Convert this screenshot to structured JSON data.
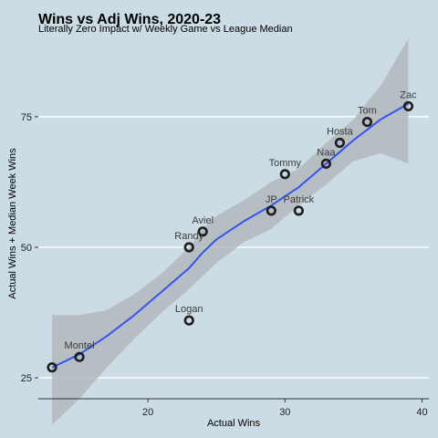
{
  "chart_data": {
    "type": "scatter",
    "title": "Wins vs Adj Wins, 2020-23",
    "subtitle": "Literally Zero Impact w/ Weekly Game vs League Median",
    "xlabel": "Actual Wins",
    "ylabel": "Actual Wins + Median Week Wins",
    "xlim": [
      12,
      40.5
    ],
    "ylim": [
      21,
      90
    ],
    "xticks": [
      20,
      30,
      40
    ],
    "yticks": [
      25,
      50,
      75
    ],
    "grid": "horizontal",
    "points": [
      {
        "name": "Montel",
        "x": 15,
        "y": 29
      },
      {
        "name": "Logan",
        "x": 23,
        "y": 36
      },
      {
        "name": "Randy",
        "x": 23,
        "y": 50
      },
      {
        "name": "Aviel",
        "x": 24,
        "y": 53
      },
      {
        "name": "JP",
        "x": 29,
        "y": 57
      },
      {
        "name": "Patrick",
        "x": 31,
        "y": 57
      },
      {
        "name": "Tommy",
        "x": 30,
        "y": 64
      },
      {
        "name": "Naa",
        "x": 33,
        "y": 66
      },
      {
        "name": "Hosta",
        "x": 34,
        "y": 70
      },
      {
        "name": "Tom",
        "x": 36,
        "y": 74
      },
      {
        "name": "Zac",
        "x": 39,
        "y": 77
      },
      {
        "name": "",
        "x": 13,
        "y": 27
      }
    ],
    "smooth_line": {
      "x": [
        13,
        15,
        17,
        19,
        21,
        23,
        24,
        25,
        27,
        29,
        31,
        33,
        35,
        37,
        39
      ],
      "y": [
        27,
        29.5,
        33,
        37,
        41.5,
        46,
        49,
        51.5,
        55,
        58,
        61.5,
        66,
        70.5,
        74.5,
        77.5
      ]
    },
    "confidence_band": {
      "x": [
        13,
        15,
        17,
        19,
        21,
        23,
        24,
        25,
        27,
        29,
        31,
        33,
        35,
        37,
        39
      ],
      "lower": [
        16,
        21,
        27,
        32.5,
        37.5,
        42,
        44.5,
        47,
        51,
        53.5,
        58,
        62,
        66.5,
        68,
        66
      ],
      "upper": [
        37,
        37,
        38,
        41,
        45,
        50,
        53.5,
        56,
        59,
        62.5,
        65,
        70,
        74.5,
        81,
        90
      ]
    },
    "colors": {
      "background": "#cbdce4",
      "band": "#b3b9bd",
      "line": "#3355ee",
      "grid": "#ffffff",
      "point_stroke": "#1e1e1e"
    }
  }
}
